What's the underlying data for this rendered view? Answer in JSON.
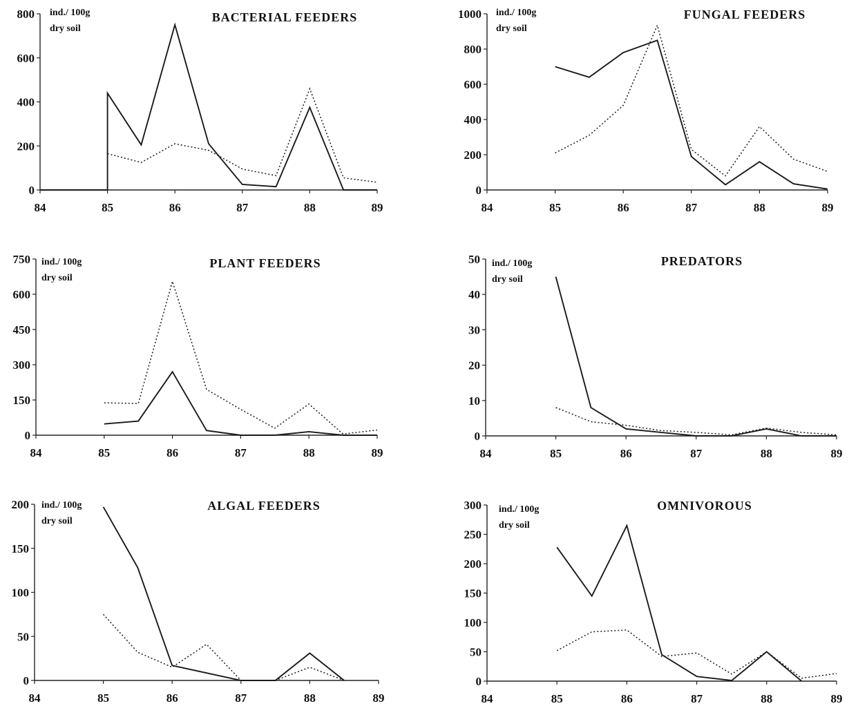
{
  "chart_data": [
    {
      "type": "line",
      "title": "BACTERIAL   FEEDERS",
      "unit_label": [
        "ind./ 100g",
        "dry soil"
      ],
      "xlim": [
        84,
        89
      ],
      "xticks": [
        "84",
        "85",
        "86",
        "87",
        "88",
        "89"
      ],
      "ylim": [
        0,
        800
      ],
      "yticks": [
        "0",
        "200",
        "400",
        "600",
        "800"
      ],
      "series": [
        {
          "style": "solid",
          "x": [
            84,
            85,
            85,
            85.5,
            86,
            86.5,
            87,
            87.5,
            88,
            88.5,
            89
          ],
          "y": [
            0,
            0,
            440,
            205,
            750,
            210,
            25,
            15,
            375,
            0,
            0
          ]
        },
        {
          "style": "dotted",
          "x": [
            85,
            85.5,
            86,
            86.5,
            87,
            87.5,
            88,
            88.5,
            89
          ],
          "y": [
            165,
            125,
            210,
            180,
            95,
            65,
            460,
            55,
            35
          ]
        }
      ]
    },
    {
      "type": "line",
      "title": "FUNGAL   FEEDERS",
      "unit_label": [
        "ind./ 100g",
        "dry soil"
      ],
      "xlim": [
        84,
        89
      ],
      "xticks": [
        "84",
        "85",
        "86",
        "87",
        "88",
        "89"
      ],
      "ylim": [
        0,
        1000
      ],
      "yticks": [
        "0",
        "200",
        "400",
        "600",
        "800",
        "1000"
      ],
      "series": [
        {
          "style": "solid",
          "x": [
            85,
            85.5,
            86,
            86.5,
            87,
            87.5,
            88,
            88.5,
            89
          ],
          "y": [
            700,
            640,
            780,
            850,
            190,
            30,
            160,
            35,
            5
          ]
        },
        {
          "style": "dotted",
          "x": [
            85,
            85.5,
            86,
            86.5,
            87,
            87.5,
            88,
            88.5,
            89
          ],
          "y": [
            210,
            310,
            480,
            935,
            230,
            80,
            360,
            175,
            105
          ]
        }
      ]
    },
    {
      "type": "line",
      "title": "PLANT   FEEDERS",
      "unit_label": [
        "ind./ 100g",
        "dry soil"
      ],
      "xlim": [
        84,
        89
      ],
      "xticks": [
        "84",
        "85",
        "86",
        "87",
        "88",
        "89"
      ],
      "ylim": [
        0,
        750
      ],
      "yticks": [
        "0",
        "150",
        "300",
        "450",
        "600",
        "750"
      ],
      "series": [
        {
          "style": "solid",
          "x": [
            85,
            85.5,
            86,
            86.5,
            87,
            87.5,
            88,
            88.5,
            89
          ],
          "y": [
            48,
            60,
            270,
            20,
            0,
            0,
            15,
            0,
            0
          ]
        },
        {
          "style": "dotted",
          "x": [
            85,
            85.5,
            86,
            86.5,
            87,
            87.5,
            88,
            88.5,
            89
          ],
          "y": [
            138,
            135,
            655,
            195,
            110,
            30,
            133,
            5,
            22
          ]
        }
      ]
    },
    {
      "type": "line",
      "title": "PREDATORS",
      "unit_label": [
        "ind./ 100g",
        "dry soil"
      ],
      "xlim": [
        84,
        89
      ],
      "xticks": [
        "84",
        "85",
        "86",
        "87",
        "88",
        "89"
      ],
      "ylim": [
        0,
        50
      ],
      "yticks": [
        "0",
        "10",
        "20",
        "30",
        "40",
        "50"
      ],
      "series": [
        {
          "style": "solid",
          "x": [
            85,
            85.5,
            86,
            86.5,
            87,
            87.5,
            88,
            88.5,
            89
          ],
          "y": [
            45,
            8,
            2,
            1,
            0,
            0,
            2,
            0,
            0
          ]
        },
        {
          "style": "dotted",
          "x": [
            85,
            85.5,
            86,
            86.5,
            87,
            87.5,
            88,
            88.5,
            89
          ],
          "y": [
            8,
            4,
            3,
            1.5,
            1,
            0.3,
            2.2,
            1,
            0.3
          ]
        }
      ]
    },
    {
      "type": "line",
      "title": "ALGAL   FEEDERS",
      "unit_label": [
        "ind./ 100g",
        "dry soil"
      ],
      "xlim": [
        84,
        89
      ],
      "xticks": [
        "84",
        "85",
        "86",
        "87",
        "88",
        "89"
      ],
      "ylim": [
        0,
        200
      ],
      "yticks": [
        "0",
        "50",
        "100",
        "150",
        "200"
      ],
      "series": [
        {
          "style": "solid",
          "x": [
            85,
            85.5,
            86,
            87,
            87.5,
            88,
            88.5
          ],
          "y": [
            197,
            128,
            17,
            0,
            0,
            31,
            0
          ]
        },
        {
          "style": "dotted",
          "x": [
            85,
            85.5,
            86,
            86.5,
            87,
            87.5,
            88,
            88.5
          ],
          "y": [
            75,
            32,
            15,
            41,
            0,
            0,
            15,
            0
          ]
        }
      ]
    },
    {
      "type": "line",
      "title": "OMNIVOROUS",
      "unit_label": [
        "ind./ 100g",
        "dry soil"
      ],
      "xlim": [
        84,
        89
      ],
      "xticks": [
        "84",
        "85",
        "86",
        "87",
        "88",
        "89"
      ],
      "ylim": [
        0,
        300
      ],
      "yticks": [
        "0",
        "50",
        "100",
        "150",
        "200",
        "250",
        "300"
      ],
      "series": [
        {
          "style": "solid",
          "x": [
            85,
            85.5,
            86,
            86.5,
            87,
            87.5,
            88,
            88.5
          ],
          "y": [
            228,
            145,
            265,
            45,
            8,
            1,
            50,
            0
          ]
        },
        {
          "style": "dotted",
          "x": [
            85,
            85.5,
            86,
            86.5,
            87,
            87.5,
            88,
            88.5,
            89
          ],
          "y": [
            52,
            84,
            87,
            42,
            48,
            12,
            50,
            5,
            13
          ]
        }
      ]
    }
  ]
}
